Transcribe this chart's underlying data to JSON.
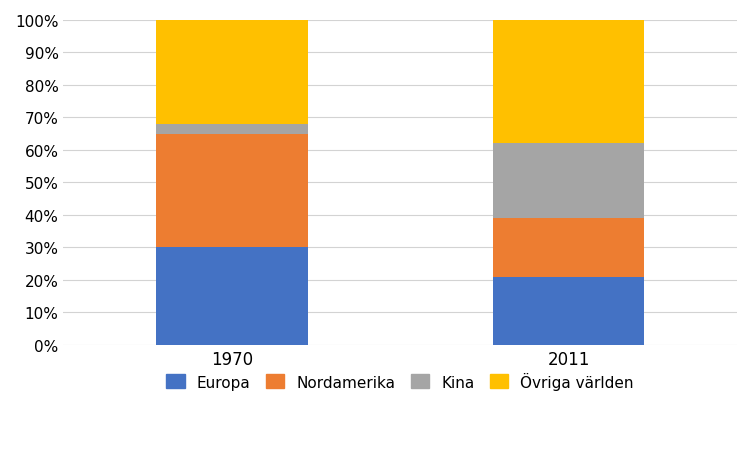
{
  "categories": [
    "1970",
    "2011"
  ],
  "series": {
    "Europa": [
      0.3,
      0.21
    ],
    "Nordamerika": [
      0.35,
      0.18
    ],
    "Kina": [
      0.03,
      0.23
    ],
    "Övriga världen": [
      0.32,
      0.38
    ]
  },
  "colors": {
    "Europa": "#4472C4",
    "Nordamerika": "#ED7D31",
    "Kina": "#A5A5A5",
    "Övriga världen": "#FFC000"
  },
  "ylim": [
    0,
    1.0
  ],
  "yticks": [
    0.0,
    0.1,
    0.2,
    0.3,
    0.4,
    0.5,
    0.6,
    0.7,
    0.8,
    0.9,
    1.0
  ],
  "yticklabels": [
    "0%",
    "10%",
    "20%",
    "30%",
    "40%",
    "50%",
    "60%",
    "70%",
    "80%",
    "90%",
    "100%"
  ],
  "x_positions": [
    1,
    3
  ],
  "bar_width": 0.9,
  "xlim": [
    0,
    4
  ],
  "background_color": "#ffffff",
  "grid_color": "#d3d3d3",
  "legend_order": [
    "Europa",
    "Nordamerika",
    "Kina",
    "Övriga världen"
  ]
}
